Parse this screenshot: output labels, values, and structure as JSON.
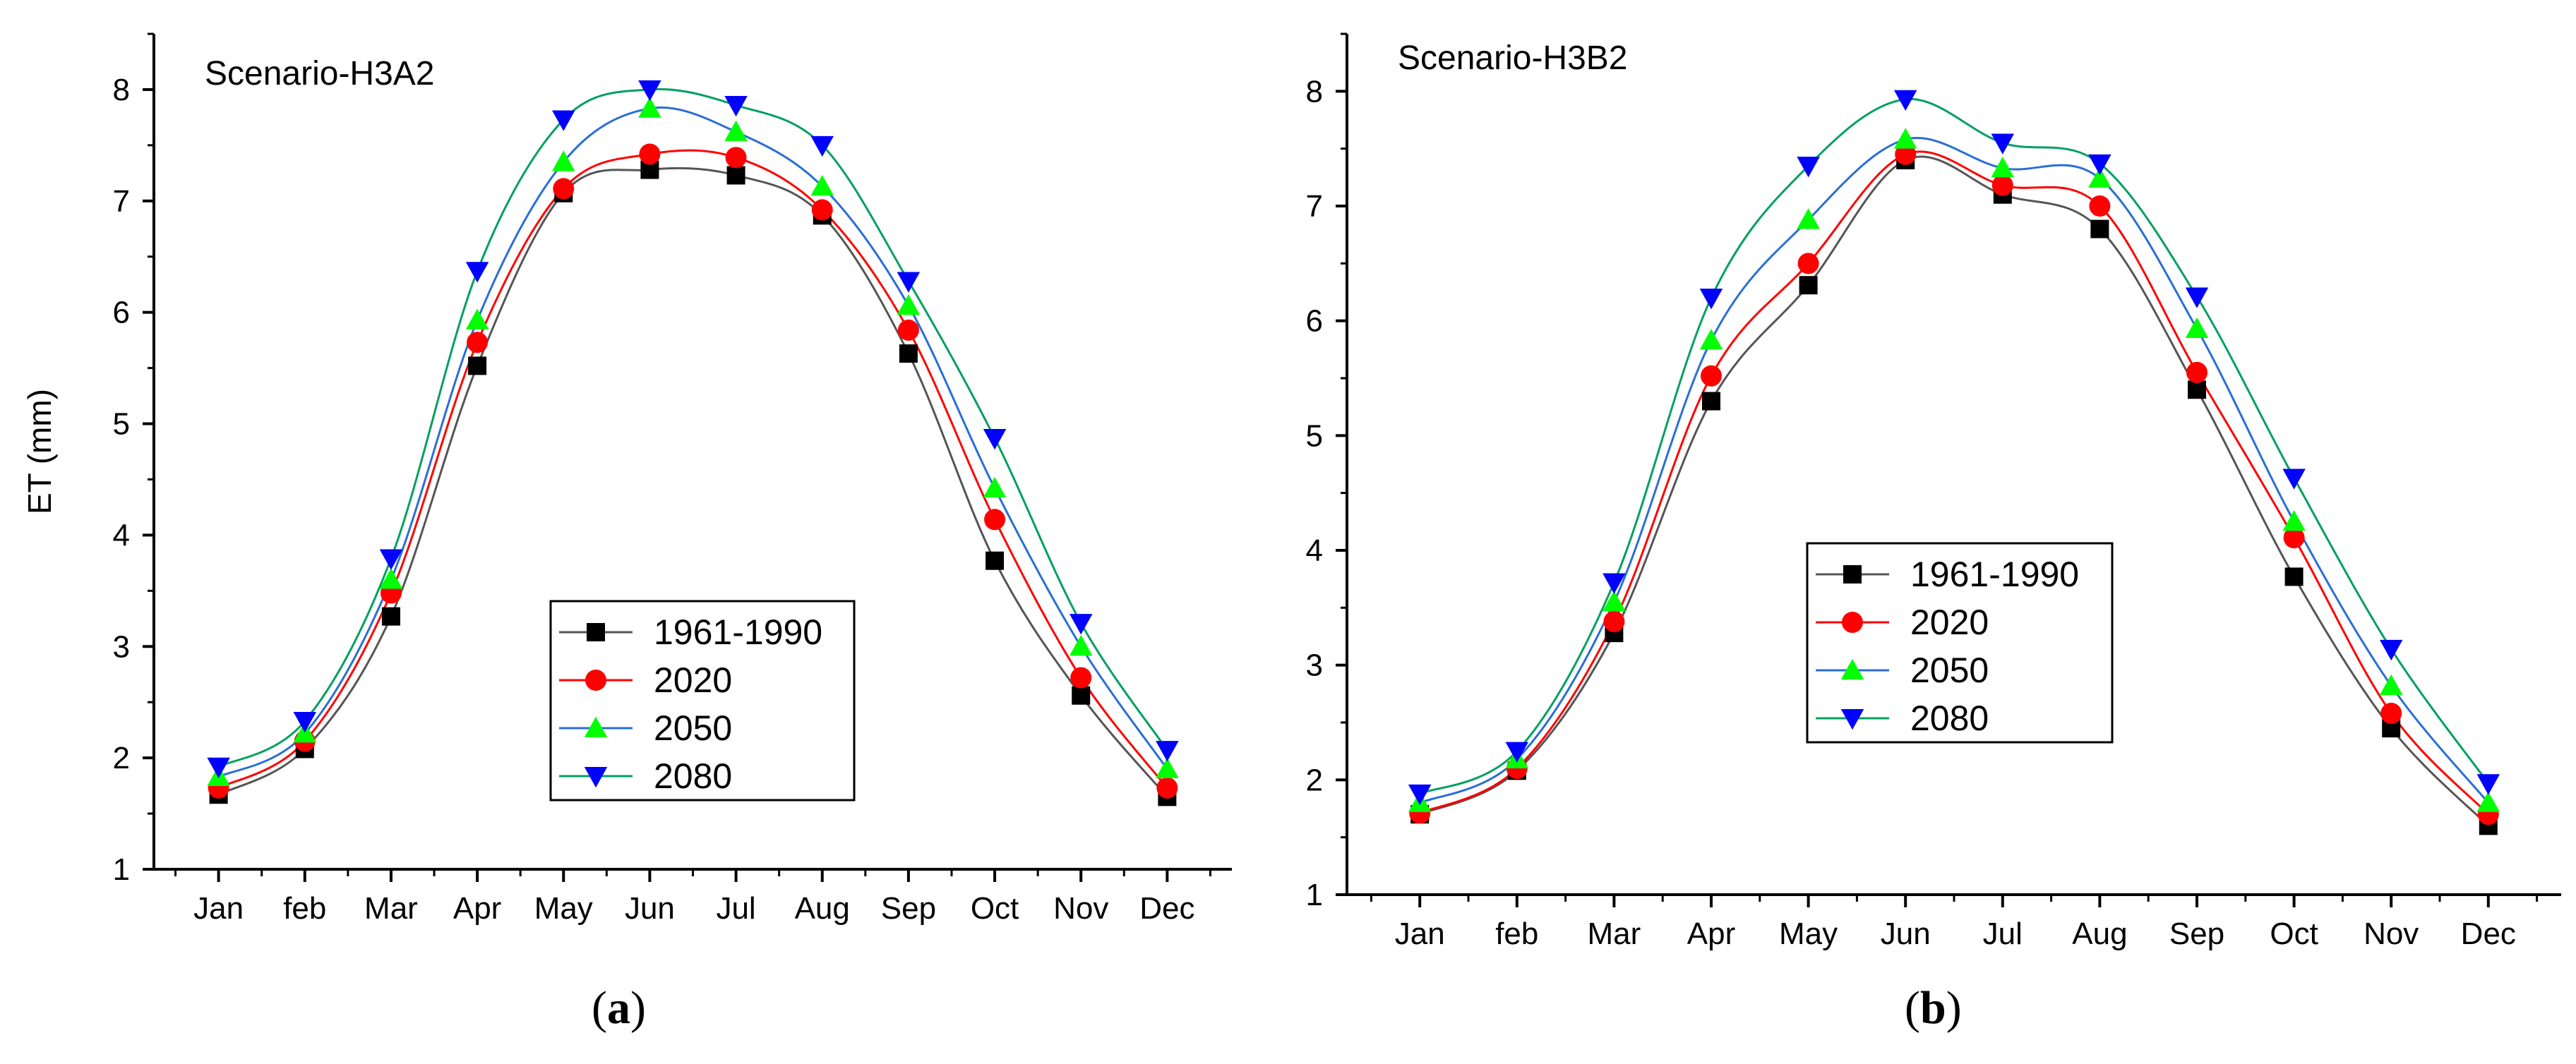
{
  "chart_data": [
    {
      "type": "line",
      "title": "Scenario-H3A2",
      "caption_letter": "a",
      "xlabel": "",
      "ylabel": "ET (mm)",
      "ylim": [
        1,
        8.5
      ],
      "yticks": [
        1,
        2,
        3,
        4,
        5,
        6,
        7,
        8
      ],
      "categories": [
        "Jan",
        "feb",
        "Mar",
        "Apr",
        "May",
        "Jun",
        "Jul",
        "Aug",
        "Sep",
        "Oct",
        "Nov",
        "Dec"
      ],
      "legend_position": "center-right",
      "series": [
        {
          "name": "1961-1990",
          "color": "#000000",
          "line_color": "#555555",
          "marker": "square",
          "values": [
            1.67,
            2.08,
            3.27,
            5.52,
            7.07,
            7.28,
            7.23,
            6.87,
            5.63,
            3.77,
            2.56,
            1.65
          ]
        },
        {
          "name": "2020",
          "color": "#ff0000",
          "line_color": "#ff0000",
          "marker": "circle",
          "values": [
            1.73,
            2.15,
            3.48,
            5.73,
            7.11,
            7.42,
            7.39,
            6.92,
            5.84,
            4.14,
            2.72,
            1.73
          ]
        },
        {
          "name": "2050",
          "color": "#00ff00",
          "line_color": "#2a6ed8",
          "marker": "triangle-up",
          "values": [
            1.83,
            2.22,
            3.6,
            5.93,
            7.35,
            7.83,
            7.62,
            7.13,
            6.06,
            4.42,
            3.0,
            1.9
          ]
        },
        {
          "name": "2080",
          "color": "#0000ff",
          "line_color": "#00a060",
          "marker": "triangle-down",
          "values": [
            1.92,
            2.33,
            3.79,
            6.37,
            7.73,
            8.0,
            7.86,
            7.5,
            6.28,
            4.87,
            3.21,
            2.07
          ]
        }
      ]
    },
    {
      "type": "line",
      "title": "Scenario-H3B2",
      "caption_letter": "b",
      "xlabel": "",
      "ylabel": "",
      "ylim": [
        1,
        8.5
      ],
      "yticks": [
        1,
        2,
        3,
        4,
        5,
        6,
        7,
        8
      ],
      "categories": [
        "Jan",
        "feb",
        "Mar",
        "Apr",
        "May",
        "Jun",
        "Jul",
        "Aug",
        "Sep",
        "Oct",
        "Nov",
        "Dec"
      ],
      "legend_position": "center",
      "series": [
        {
          "name": "1961-1990",
          "color": "#000000",
          "line_color": "#555555",
          "marker": "square",
          "values": [
            1.7,
            2.08,
            3.28,
            5.3,
            6.31,
            7.4,
            7.1,
            6.8,
            5.4,
            3.77,
            2.45,
            1.6
          ]
        },
        {
          "name": "2020",
          "color": "#ff0000",
          "line_color": "#ff0000",
          "marker": "circle",
          "values": [
            1.71,
            2.1,
            3.38,
            5.52,
            6.5,
            7.45,
            7.18,
            7.0,
            5.55,
            4.11,
            2.58,
            1.7
          ]
        },
        {
          "name": "2050",
          "color": "#00ff00",
          "line_color": "#2a6ed8",
          "marker": "triangle-up",
          "values": [
            1.8,
            2.18,
            3.55,
            5.83,
            6.88,
            7.58,
            7.33,
            7.24,
            5.93,
            4.25,
            2.82,
            1.8
          ]
        },
        {
          "name": "2080",
          "color": "#0000ff",
          "line_color": "#00a060",
          "marker": "triangle-down",
          "values": [
            1.88,
            2.25,
            3.72,
            6.2,
            7.35,
            7.93,
            7.55,
            7.37,
            6.21,
            4.63,
            3.14,
            1.97
          ]
        }
      ]
    }
  ]
}
